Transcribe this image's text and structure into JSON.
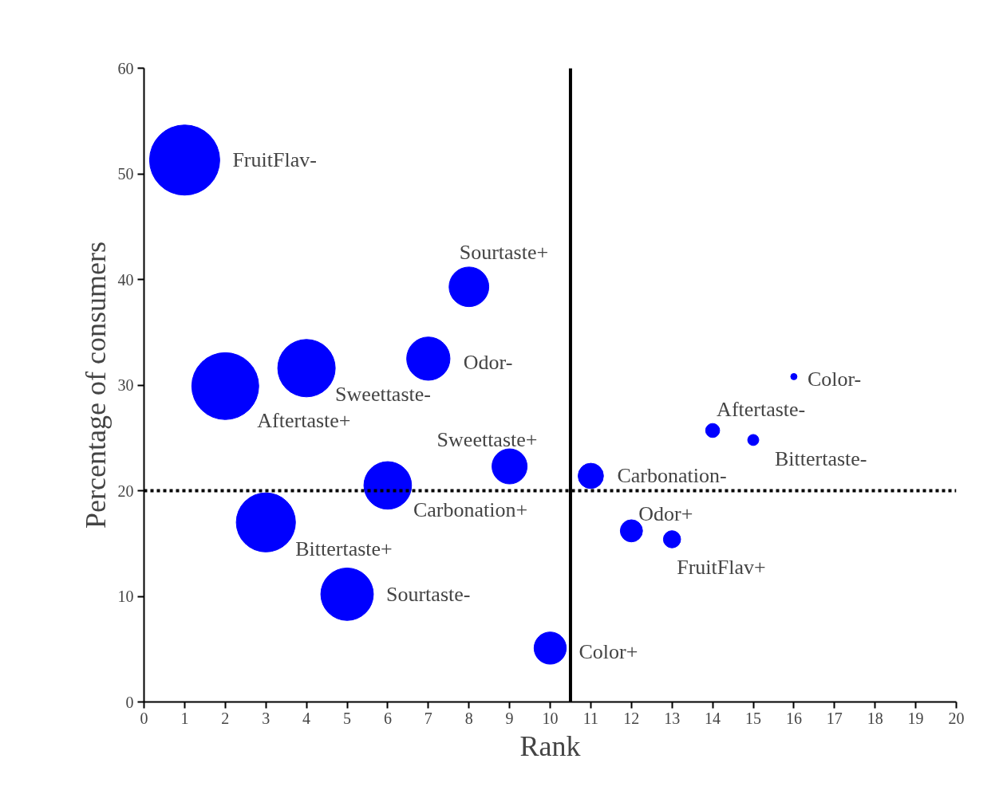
{
  "chart_data": {
    "type": "bubble",
    "xlabel": "Rank",
    "ylabel": "Percentage of consumers",
    "x": [
      1,
      2,
      3,
      4,
      5,
      6,
      7,
      8,
      9,
      10,
      11,
      12,
      13,
      14,
      15,
      16
    ],
    "values": [
      51.3,
      29.9,
      17.0,
      31.6,
      10.2,
      20.5,
      32.5,
      39.3,
      22.3,
      5.1,
      21.4,
      16.2,
      15.4,
      25.7,
      24.8,
      30.8
    ],
    "sizes": [
      1,
      0.91,
      0.71,
      0.67,
      0.56,
      0.46,
      0.38,
      0.32,
      0.25,
      0.21,
      0.13,
      0.1,
      0.06,
      0.04,
      0.025,
      0.008
    ],
    "color": "#0000ff",
    "marker": "circle",
    "xlim": [
      0,
      20
    ],
    "xticks": [
      0,
      1,
      2,
      3,
      4,
      5,
      6,
      7,
      8,
      9,
      10,
      11,
      12,
      13,
      14,
      15,
      16,
      17,
      18,
      19,
      20
    ],
    "ylim": [
      0,
      60
    ],
    "yticks": [
      0,
      10,
      20,
      30,
      40,
      50,
      60
    ],
    "grid": false,
    "ref_lines": [
      {
        "axis": "x",
        "value": 10.5,
        "line_style": "solid",
        "color": "#000000"
      },
      {
        "axis": "y",
        "value": 20,
        "line_style": "dotted",
        "color": "#000000"
      }
    ],
    "annotations": [
      {
        "text": "FruitFlav-",
        "x": 1,
        "y": 51.3
      },
      {
        "text": "Aftertaste+",
        "x": 2,
        "y": 29.9
      },
      {
        "text": "Bittertaste+",
        "x": 3,
        "y": 17.0
      },
      {
        "text": "Sweettaste-",
        "x": 4,
        "y": 31.6
      },
      {
        "text": "Sourtaste-",
        "x": 5,
        "y": 10.2
      },
      {
        "text": "Carbonation+",
        "x": 6,
        "y": 20.5
      },
      {
        "text": "Odor-",
        "x": 7,
        "y": 32.5
      },
      {
        "text": "Sourtaste+",
        "x": 8,
        "y": 39.3
      },
      {
        "text": "Sweettaste+",
        "x": 9,
        "y": 22.3
      },
      {
        "text": "Color+",
        "x": 10,
        "y": 5.1
      },
      {
        "text": "Carbonation-",
        "x": 11,
        "y": 21.4
      },
      {
        "text": "Odor+",
        "x": 12,
        "y": 16.2
      },
      {
        "text": "FruitFlav+",
        "x": 13,
        "y": 15.4
      },
      {
        "text": "Aftertaste-",
        "x": 14,
        "y": 25.7
      },
      {
        "text": "Bittertaste-",
        "x": 15,
        "y": 24.8
      },
      {
        "text": "Color-",
        "x": 16,
        "y": 30.8
      }
    ]
  }
}
